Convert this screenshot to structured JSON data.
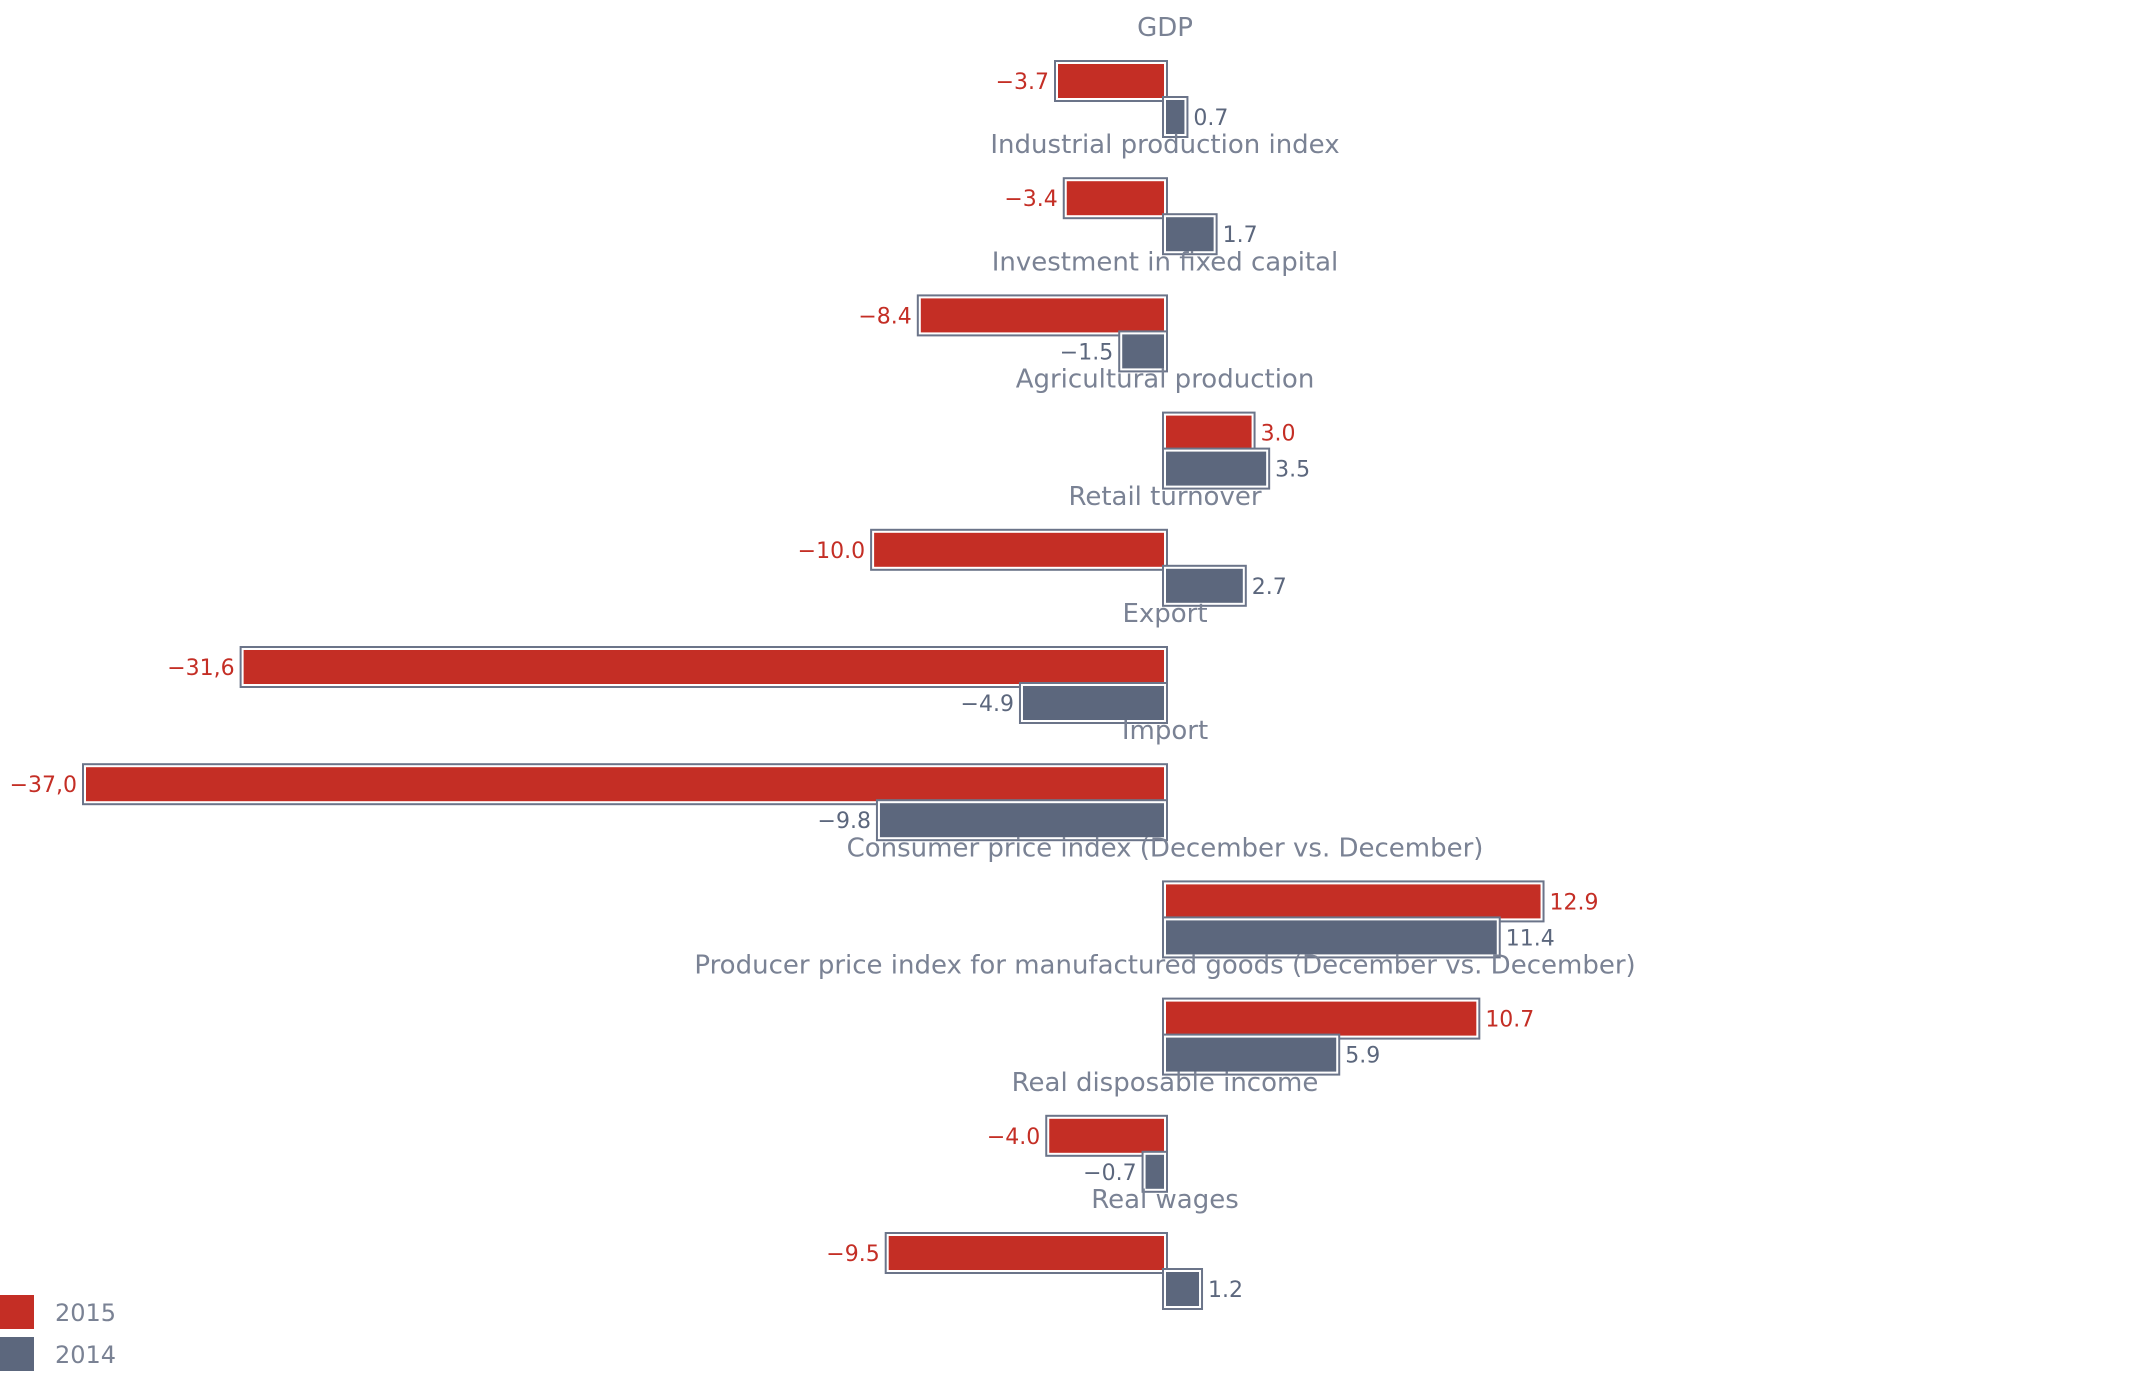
{
  "colors": {
    "series_2015": "#c42e25",
    "series_2014": "#5c677d",
    "bar_outline": "#6b7489",
    "category_text": "#7a8294"
  },
  "chart_data": {
    "type": "bar",
    "orientation": "horizontal",
    "categories": [
      "GDP",
      "Industrial production index",
      "Investment in fixed capital",
      "Agricultural production",
      "Retail turnover",
      "Export",
      "Import",
      "Consumer price index (December vs. December)",
      "Producer price index for manufactured goods (December vs. December)",
      "Real disposable income",
      "Real wages"
    ],
    "series": [
      {
        "name": "2015",
        "values": [
          -3.7,
          -3.4,
          -8.4,
          3.0,
          -10.0,
          -31.6,
          -37.0,
          12.9,
          10.7,
          -4.0,
          -9.5
        ],
        "labels": [
          "−3.7",
          "−3.4",
          "−8.4",
          "3.0",
          "−10.0",
          "−31,6",
          "−37,0",
          "12.9",
          "10.7",
          "−4.0",
          "−9.5"
        ]
      },
      {
        "name": "2014",
        "values": [
          0.7,
          1.7,
          -1.5,
          3.5,
          2.7,
          -4.9,
          -9.8,
          11.4,
          5.9,
          -0.7,
          1.2
        ],
        "labels": [
          "0.7",
          "1.7",
          "−1.5",
          "3.5",
          "2.7",
          "−4.9",
          "−9.8",
          "11.4",
          "5.9",
          "−0.7",
          "1.2"
        ]
      }
    ],
    "title": "",
    "xlabel": "",
    "ylabel": "",
    "xlim": [
      -37.0,
      13.0
    ],
    "grid": false,
    "legend_position": "bottom-left"
  }
}
